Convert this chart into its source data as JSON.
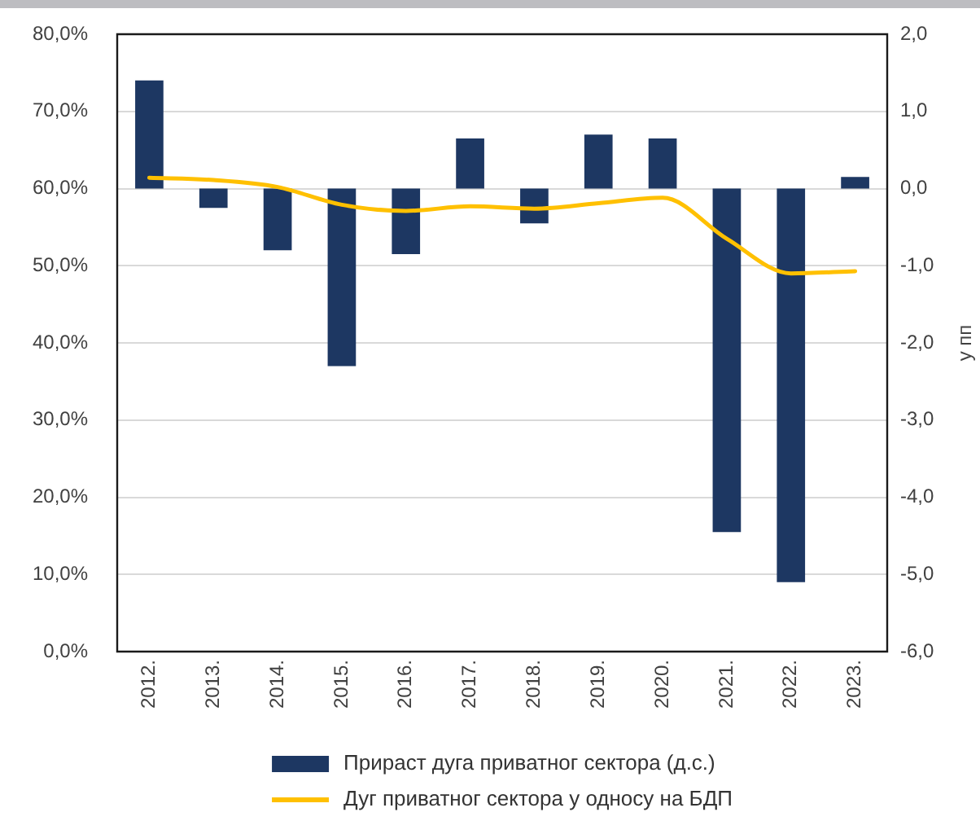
{
  "chart_data": {
    "type": "bar",
    "categories": [
      "2012.",
      "2013.",
      "2014.",
      "2015.",
      "2016.",
      "2017.",
      "2018.",
      "2019.",
      "2020.",
      "2021.",
      "2022.",
      "2023."
    ],
    "series": [
      {
        "name": "Прираст дуга приватног сектора (д.с.)",
        "axis": "y2",
        "color": "#1d3762",
        "values": [
          1.4,
          -0.25,
          -0.8,
          -2.3,
          -0.85,
          0.65,
          -0.45,
          0.7,
          0.65,
          -4.45,
          -5.1,
          0.15
        ]
      },
      {
        "name": "Дуг приватног сектора у односу на БДП",
        "type": "line",
        "color": "#ffc000",
        "marker": "none",
        "values": [
          61.4,
          61.1,
          60.2,
          57.9,
          57.1,
          57.7,
          57.4,
          58.1,
          58.8,
          53.5,
          49.0,
          49.3
        ]
      }
    ],
    "ylim": [
      0,
      80
    ],
    "yticks": [
      {
        "value": 0,
        "label": "0,0%"
      },
      {
        "value": 10,
        "label": "10,0%"
      },
      {
        "value": 20,
        "label": "20,0%"
      },
      {
        "value": 30,
        "label": "30,0%"
      },
      {
        "value": 40,
        "label": "40,0%"
      },
      {
        "value": 50,
        "label": "50,0%"
      },
      {
        "value": 60,
        "label": "60,0%"
      },
      {
        "value": 70,
        "label": "70,0%"
      },
      {
        "value": 80,
        "label": "80,0%"
      }
    ],
    "y2lim": [
      -6,
      2
    ],
    "y2ticks": [
      {
        "value": -6,
        "label": "-6,0"
      },
      {
        "value": -5,
        "label": "-5,0"
      },
      {
        "value": -4,
        "label": "-4,0"
      },
      {
        "value": -3,
        "label": "-3,0"
      },
      {
        "value": -2,
        "label": "-2,0"
      },
      {
        "value": -1,
        "label": "-1,0"
      },
      {
        "value": 0,
        "label": "0,0"
      },
      {
        "value": 1,
        "label": "1,0"
      },
      {
        "value": 2,
        "label": "2,0"
      }
    ],
    "y2label": "у пп",
    "grid": "y",
    "legend": "bottom"
  }
}
